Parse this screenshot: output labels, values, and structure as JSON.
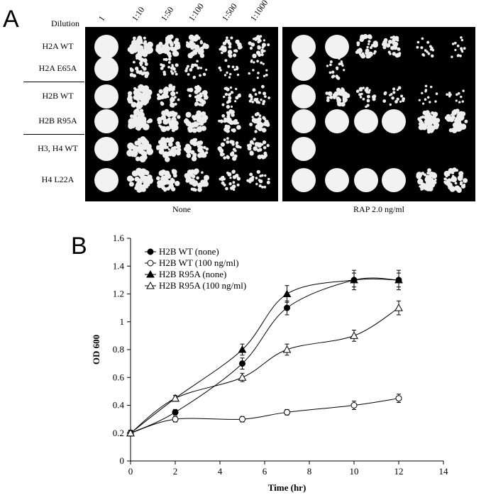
{
  "panel_a": {
    "letter": "A",
    "dilution_title": "Dilution",
    "dilutions": [
      "1",
      "1:10",
      "1:50",
      "1:100",
      "1:500",
      "1:1000"
    ],
    "strains": [
      "H2A WT",
      "H2A E65A",
      "H2B WT",
      "H2B R95A",
      "H3, H4 WT",
      "H4 L22A"
    ],
    "condition_none": "None",
    "condition_rap": "RAP 2.0 ng/ml",
    "growth_none": [
      [
        1.0,
        0.85,
        0.8,
        0.7,
        0.45,
        0.4
      ],
      [
        1.0,
        0.45,
        0.25,
        0.2,
        0.1,
        0.08
      ],
      [
        1.0,
        0.85,
        0.55,
        0.55,
        0.3,
        0.25
      ],
      [
        1.0,
        0.85,
        0.7,
        0.65,
        0.5,
        0.5
      ],
      [
        1.0,
        0.85,
        0.75,
        0.65,
        0.45,
        0.45
      ],
      [
        1.0,
        0.85,
        0.75,
        0.6,
        0.35,
        0.3
      ]
    ],
    "growth_rap": [
      [
        1.0,
        1.0,
        0.6,
        0.45,
        0.15,
        0.1
      ],
      [
        1.0,
        0.2,
        0.0,
        0.0,
        0.0,
        0.0
      ],
      [
        1.0,
        0.5,
        0.3,
        0.2,
        0.05,
        0.05
      ],
      [
        1.0,
        1.0,
        1.0,
        1.0,
        0.75,
        0.75
      ],
      [
        1.0,
        0.0,
        0.0,
        0.0,
        0.0,
        0.0
      ],
      [
        1.0,
        1.0,
        1.0,
        1.0,
        0.7,
        0.7
      ]
    ]
  },
  "panel_b": {
    "letter": "B"
  },
  "chart_data": {
    "type": "line",
    "xlabel": "Time (hr)",
    "ylabel": "OD 600",
    "xlim": [
      0,
      14
    ],
    "ylim": [
      0,
      1.6
    ],
    "xticks": [
      0,
      2,
      4,
      6,
      8,
      10,
      12,
      14
    ],
    "yticks": [
      0,
      0.2,
      0.4,
      0.6,
      0.8,
      1,
      1.2,
      1.4,
      1.6
    ],
    "ytick_labels": [
      "0",
      "0.2",
      "0.4",
      "0.6",
      "0.8",
      "1",
      "1.2",
      "1.4",
      "1.6"
    ],
    "legend_position": "top-left",
    "grid": false,
    "series": [
      {
        "name": "H2B WT (none)",
        "marker": "circle-filled",
        "x": [
          0,
          2,
          5,
          7,
          10,
          12
        ],
        "y": [
          0.2,
          0.35,
          0.7,
          1.1,
          1.3,
          1.3
        ],
        "err": [
          0.02,
          0.02,
          0.04,
          0.05,
          0.05,
          0.05
        ]
      },
      {
        "name": "H2B WT (100 ng/ml)",
        "marker": "circle-open",
        "x": [
          0,
          2,
          5,
          7,
          10,
          12
        ],
        "y": [
          0.2,
          0.3,
          0.3,
          0.35,
          0.4,
          0.45
        ],
        "err": [
          0.02,
          0.02,
          0.02,
          0.02,
          0.03,
          0.03
        ]
      },
      {
        "name": "H2B R95A (none)",
        "marker": "triangle-filled",
        "x": [
          0,
          2,
          5,
          7,
          10,
          12
        ],
        "y": [
          0.2,
          0.45,
          0.8,
          1.2,
          1.3,
          1.3
        ],
        "err": [
          0.02,
          0.02,
          0.04,
          0.06,
          0.07,
          0.07
        ]
      },
      {
        "name": "H2B R95A (100 ng/ml)",
        "marker": "triangle-open",
        "x": [
          0,
          2,
          5,
          7,
          10,
          12
        ],
        "y": [
          0.2,
          0.45,
          0.6,
          0.8,
          0.9,
          1.1
        ],
        "err": [
          0.02,
          0.02,
          0.03,
          0.04,
          0.04,
          0.05
        ]
      }
    ]
  }
}
